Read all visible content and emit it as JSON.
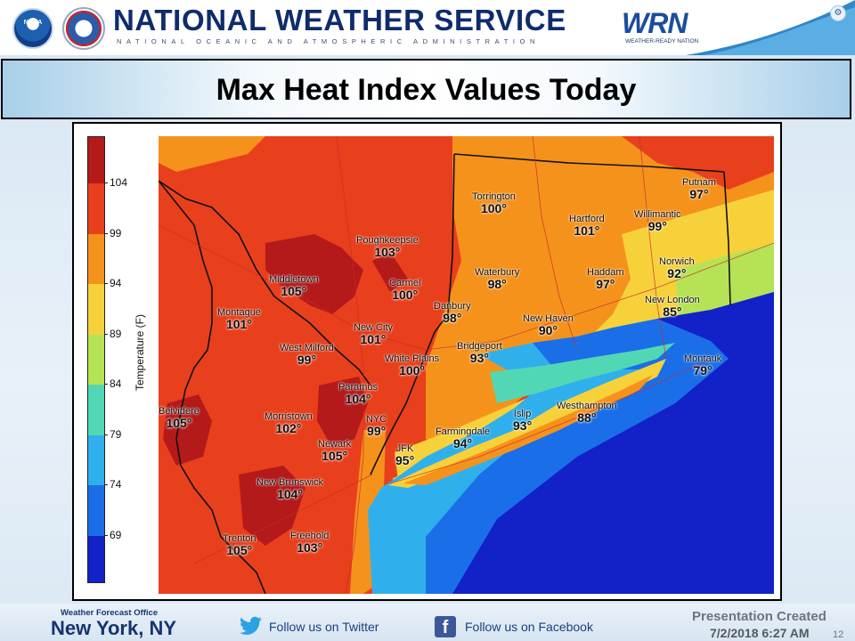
{
  "header": {
    "org_title": "NATIONAL WEATHER SERVICE",
    "org_subtitle": "NATIONAL OCEANIC AND ATMOSPHERIC ADMINISTRATION",
    "noaa_logo_text": "NOAA",
    "wrn_logo_text": "WRN",
    "wrn_logo_tagline": "WEATHER-READY NATION"
  },
  "slide": {
    "title": "Max Heat Index Values Today"
  },
  "legend": {
    "axis_label": "Temperature (F)",
    "ticks": [
      "104",
      "99",
      "94",
      "89",
      "84",
      "79",
      "74",
      "69"
    ],
    "colors": {
      "above_104": "#b41a1a",
      "99_104": "#e8401c",
      "94_99": "#f5921c",
      "89_94": "#f7d13a",
      "84_89": "#b6e256",
      "79_84": "#52d7b5",
      "74_79": "#2fb0ec",
      "69_74": "#1a6fe8",
      "below_69": "#1222c8"
    }
  },
  "map": {
    "cities": [
      {
        "name": "Torrington",
        "value": "100°"
      },
      {
        "name": "Hartford",
        "value": "101°"
      },
      {
        "name": "Putnam",
        "value": "97°"
      },
      {
        "name": "Willimantic",
        "value": "99°"
      },
      {
        "name": "Poughkeepsie",
        "value": "103°"
      },
      {
        "name": "Middletown",
        "value": "105°"
      },
      {
        "name": "Carmel",
        "value": "100°"
      },
      {
        "name": "Waterbury",
        "value": "98°"
      },
      {
        "name": "Haddam",
        "value": "97°"
      },
      {
        "name": "Norwich",
        "value": "92°"
      },
      {
        "name": "Montague",
        "value": "101°"
      },
      {
        "name": "Danbury",
        "value": "98°"
      },
      {
        "name": "New London",
        "value": "85°"
      },
      {
        "name": "New City",
        "value": "101°"
      },
      {
        "name": "New Haven",
        "value": "90°"
      },
      {
        "name": "West Milford",
        "value": "99°"
      },
      {
        "name": "Bridgeport",
        "value": "93°"
      },
      {
        "name": "White Plains",
        "value": "100°"
      },
      {
        "name": "Montauk",
        "value": "79°"
      },
      {
        "name": "Paramus",
        "value": "104°"
      },
      {
        "name": "Belvidere",
        "value": "105°"
      },
      {
        "name": "Morristown",
        "value": "102°"
      },
      {
        "name": "NYC",
        "value": "99°"
      },
      {
        "name": "Islip",
        "value": "93°"
      },
      {
        "name": "Westhampton",
        "value": "88°"
      },
      {
        "name": "Newark",
        "value": "105°"
      },
      {
        "name": "Farmingdale",
        "value": "94°"
      },
      {
        "name": "JFK",
        "value": "95°"
      },
      {
        "name": "New Brunswick",
        "value": "104°"
      },
      {
        "name": "Trenton",
        "value": "105°"
      },
      {
        "name": "Freehold",
        "value": "103°"
      }
    ]
  },
  "footer": {
    "wfo_label": "Weather Forecast Office",
    "wfo_name": "New York, NY",
    "twitter_text": "Follow us on Twitter",
    "facebook_text": "Follow us on Facebook",
    "facebook_glyph": "f",
    "presentation_label": "Presentation Created",
    "presentation_date": "7/2/2018 6:27 AM",
    "slide_number": "12"
  }
}
